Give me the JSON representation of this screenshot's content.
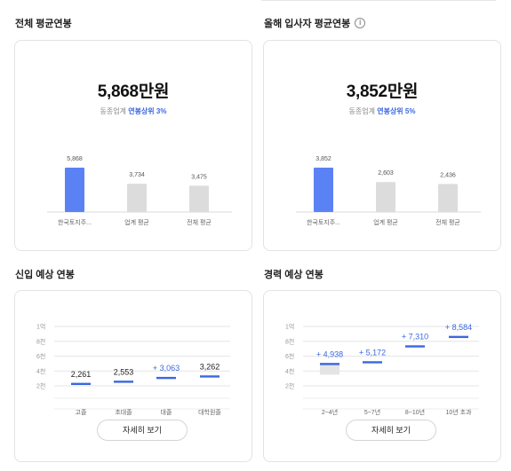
{
  "total": {
    "title": "전체 평균연봉",
    "value": "5,868만원",
    "sub_prefix": "동종업계",
    "sub_rank": "연봉상위 3%",
    "chart_data": {
      "type": "bar",
      "categories": [
        "한국토지주...",
        "업계 평균",
        "전체 평균"
      ],
      "values": [
        5868,
        3734,
        3475
      ],
      "value_labels": [
        "5,868",
        "3,734",
        "3,475"
      ],
      "highlight_index": 0,
      "colors": {
        "highlight": "#5b82f5",
        "normal": "#dcdcdc"
      }
    }
  },
  "newhire": {
    "title": "올해 입사자 평균연봉",
    "value": "3,852만원",
    "sub_prefix": "동종업계",
    "sub_rank": "연봉상위 5%",
    "info_icon": "info-circle-icon",
    "chart_data": {
      "type": "bar",
      "categories": [
        "한국토지주...",
        "업계 평균",
        "전체 평균"
      ],
      "values": [
        3852,
        2603,
        2436
      ],
      "value_labels": [
        "3,852",
        "2,603",
        "2,436"
      ],
      "highlight_index": 0,
      "colors": {
        "highlight": "#5b82f5",
        "normal": "#dcdcdc"
      }
    }
  },
  "entry": {
    "title": "신입 예상 연봉",
    "more_label": "자세히 보기",
    "chart_data": {
      "type": "range",
      "y_ticks": [
        "1억",
        "8천",
        "6천",
        "4천",
        "2천"
      ],
      "y_tick_values": [
        10000,
        8000,
        6000,
        4000,
        2000
      ],
      "categories": [
        "고졸",
        "초대졸",
        "대졸",
        "대학원졸"
      ],
      "values": [
        2261,
        2553,
        3063,
        3262
      ],
      "value_labels": [
        "2,261",
        "2,553",
        "3,063",
        "3,262"
      ],
      "highlight": [
        false,
        false,
        true,
        false
      ],
      "colors": {
        "line": "#3b67e0",
        "text_highlight": "#3b67e0"
      }
    }
  },
  "career": {
    "title": "경력 예상 연봉",
    "more_label": "자세히 보기",
    "chart_data": {
      "type": "range",
      "y_ticks": [
        "1억",
        "8천",
        "6천",
        "4천",
        "2천"
      ],
      "y_tick_values": [
        10000,
        8000,
        6000,
        4000,
        2000
      ],
      "categories": [
        "2~4년",
        "5~7년",
        "8~10년",
        "10년 초과"
      ],
      "values": [
        4938,
        5172,
        7310,
        8584
      ],
      "value_labels": [
        "4,938",
        "5,172",
        "7,310",
        "8,584"
      ],
      "highlight": [
        true,
        true,
        true,
        true
      ],
      "range_box": {
        "index": 0,
        "low": 3500,
        "high": 5100
      },
      "colors": {
        "line": "#3b67e0",
        "text_highlight": "#3b67e0",
        "range": "#e4e4e4"
      }
    }
  }
}
